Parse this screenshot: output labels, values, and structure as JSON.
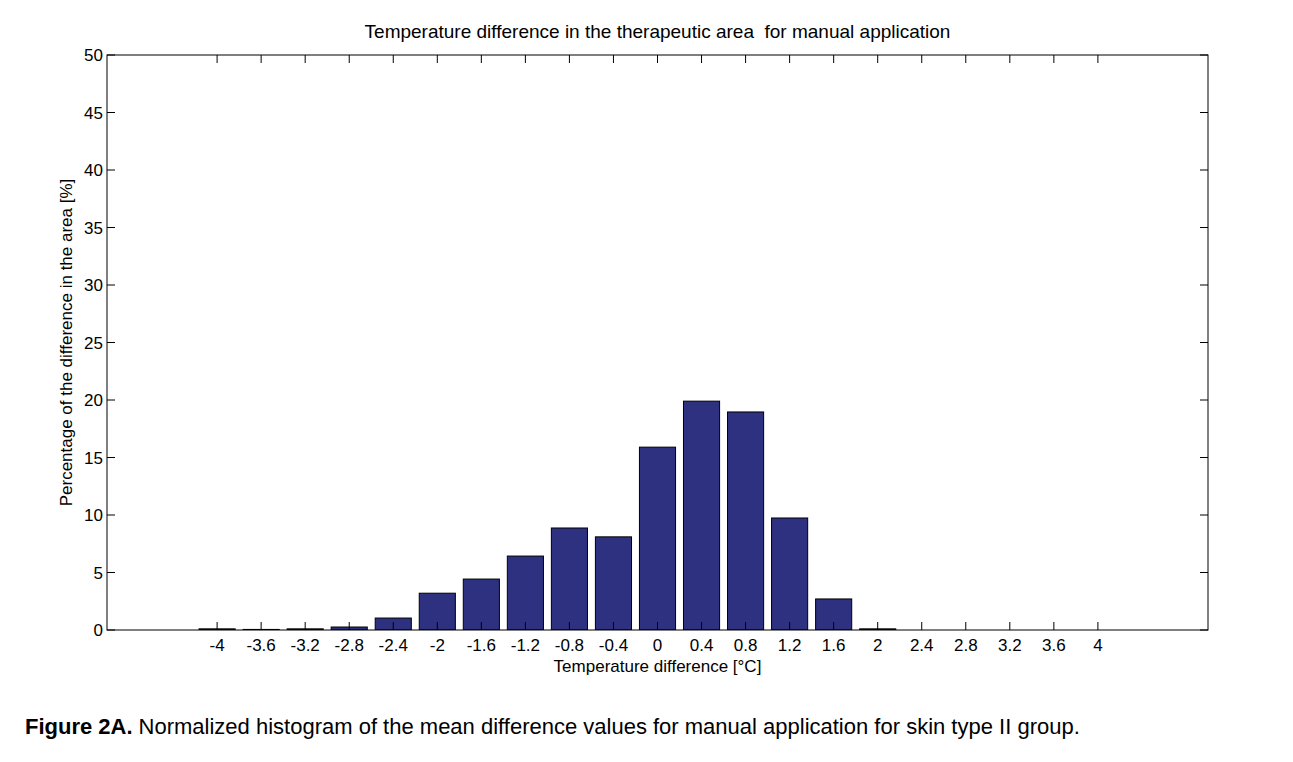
{
  "chart_data": {
    "type": "bar",
    "title": "Temperature difference in the therapeutic area  for manual application",
    "x_label": "Temperature difference [°C]",
    "y_label": "Percentage of the difference in the area [%]",
    "x": [
      -4,
      -3.6,
      -3.2,
      -2.8,
      -2.4,
      -2,
      -1.6,
      -1.2,
      -0.8,
      -0.4,
      0,
      0.4,
      0.8,
      1.2,
      1.6,
      2,
      2.4,
      2.8,
      3.2,
      3.6,
      4
    ],
    "values": [
      0.1,
      0.05,
      0.1,
      0.26,
      1.04,
      3.2,
      4.43,
      6.43,
      8.87,
      8.1,
      15.9,
      19.9,
      18.96,
      9.74,
      2.7,
      0.1,
      0,
      0,
      0,
      0,
      0
    ],
    "color": "#2e3180",
    "xlim": [
      -5,
      5
    ],
    "xticks": [
      -4,
      -3.6,
      -3.2,
      -2.8,
      -2.4,
      -2,
      -1.6,
      -1.2,
      -0.8,
      -0.4,
      0,
      0.4,
      0.8,
      1.2,
      1.6,
      2,
      2.4,
      2.8,
      3.2,
      3.6,
      4
    ],
    "ylim": [
      0,
      50
    ],
    "yticks": [
      0,
      5,
      10,
      15,
      20,
      25,
      30,
      35,
      40,
      45,
      50
    ],
    "grid": false,
    "caption": {
      "label": "Figure 2A.",
      "text": "Normalized histogram of the mean difference values for manual application for skin type II group."
    }
  }
}
